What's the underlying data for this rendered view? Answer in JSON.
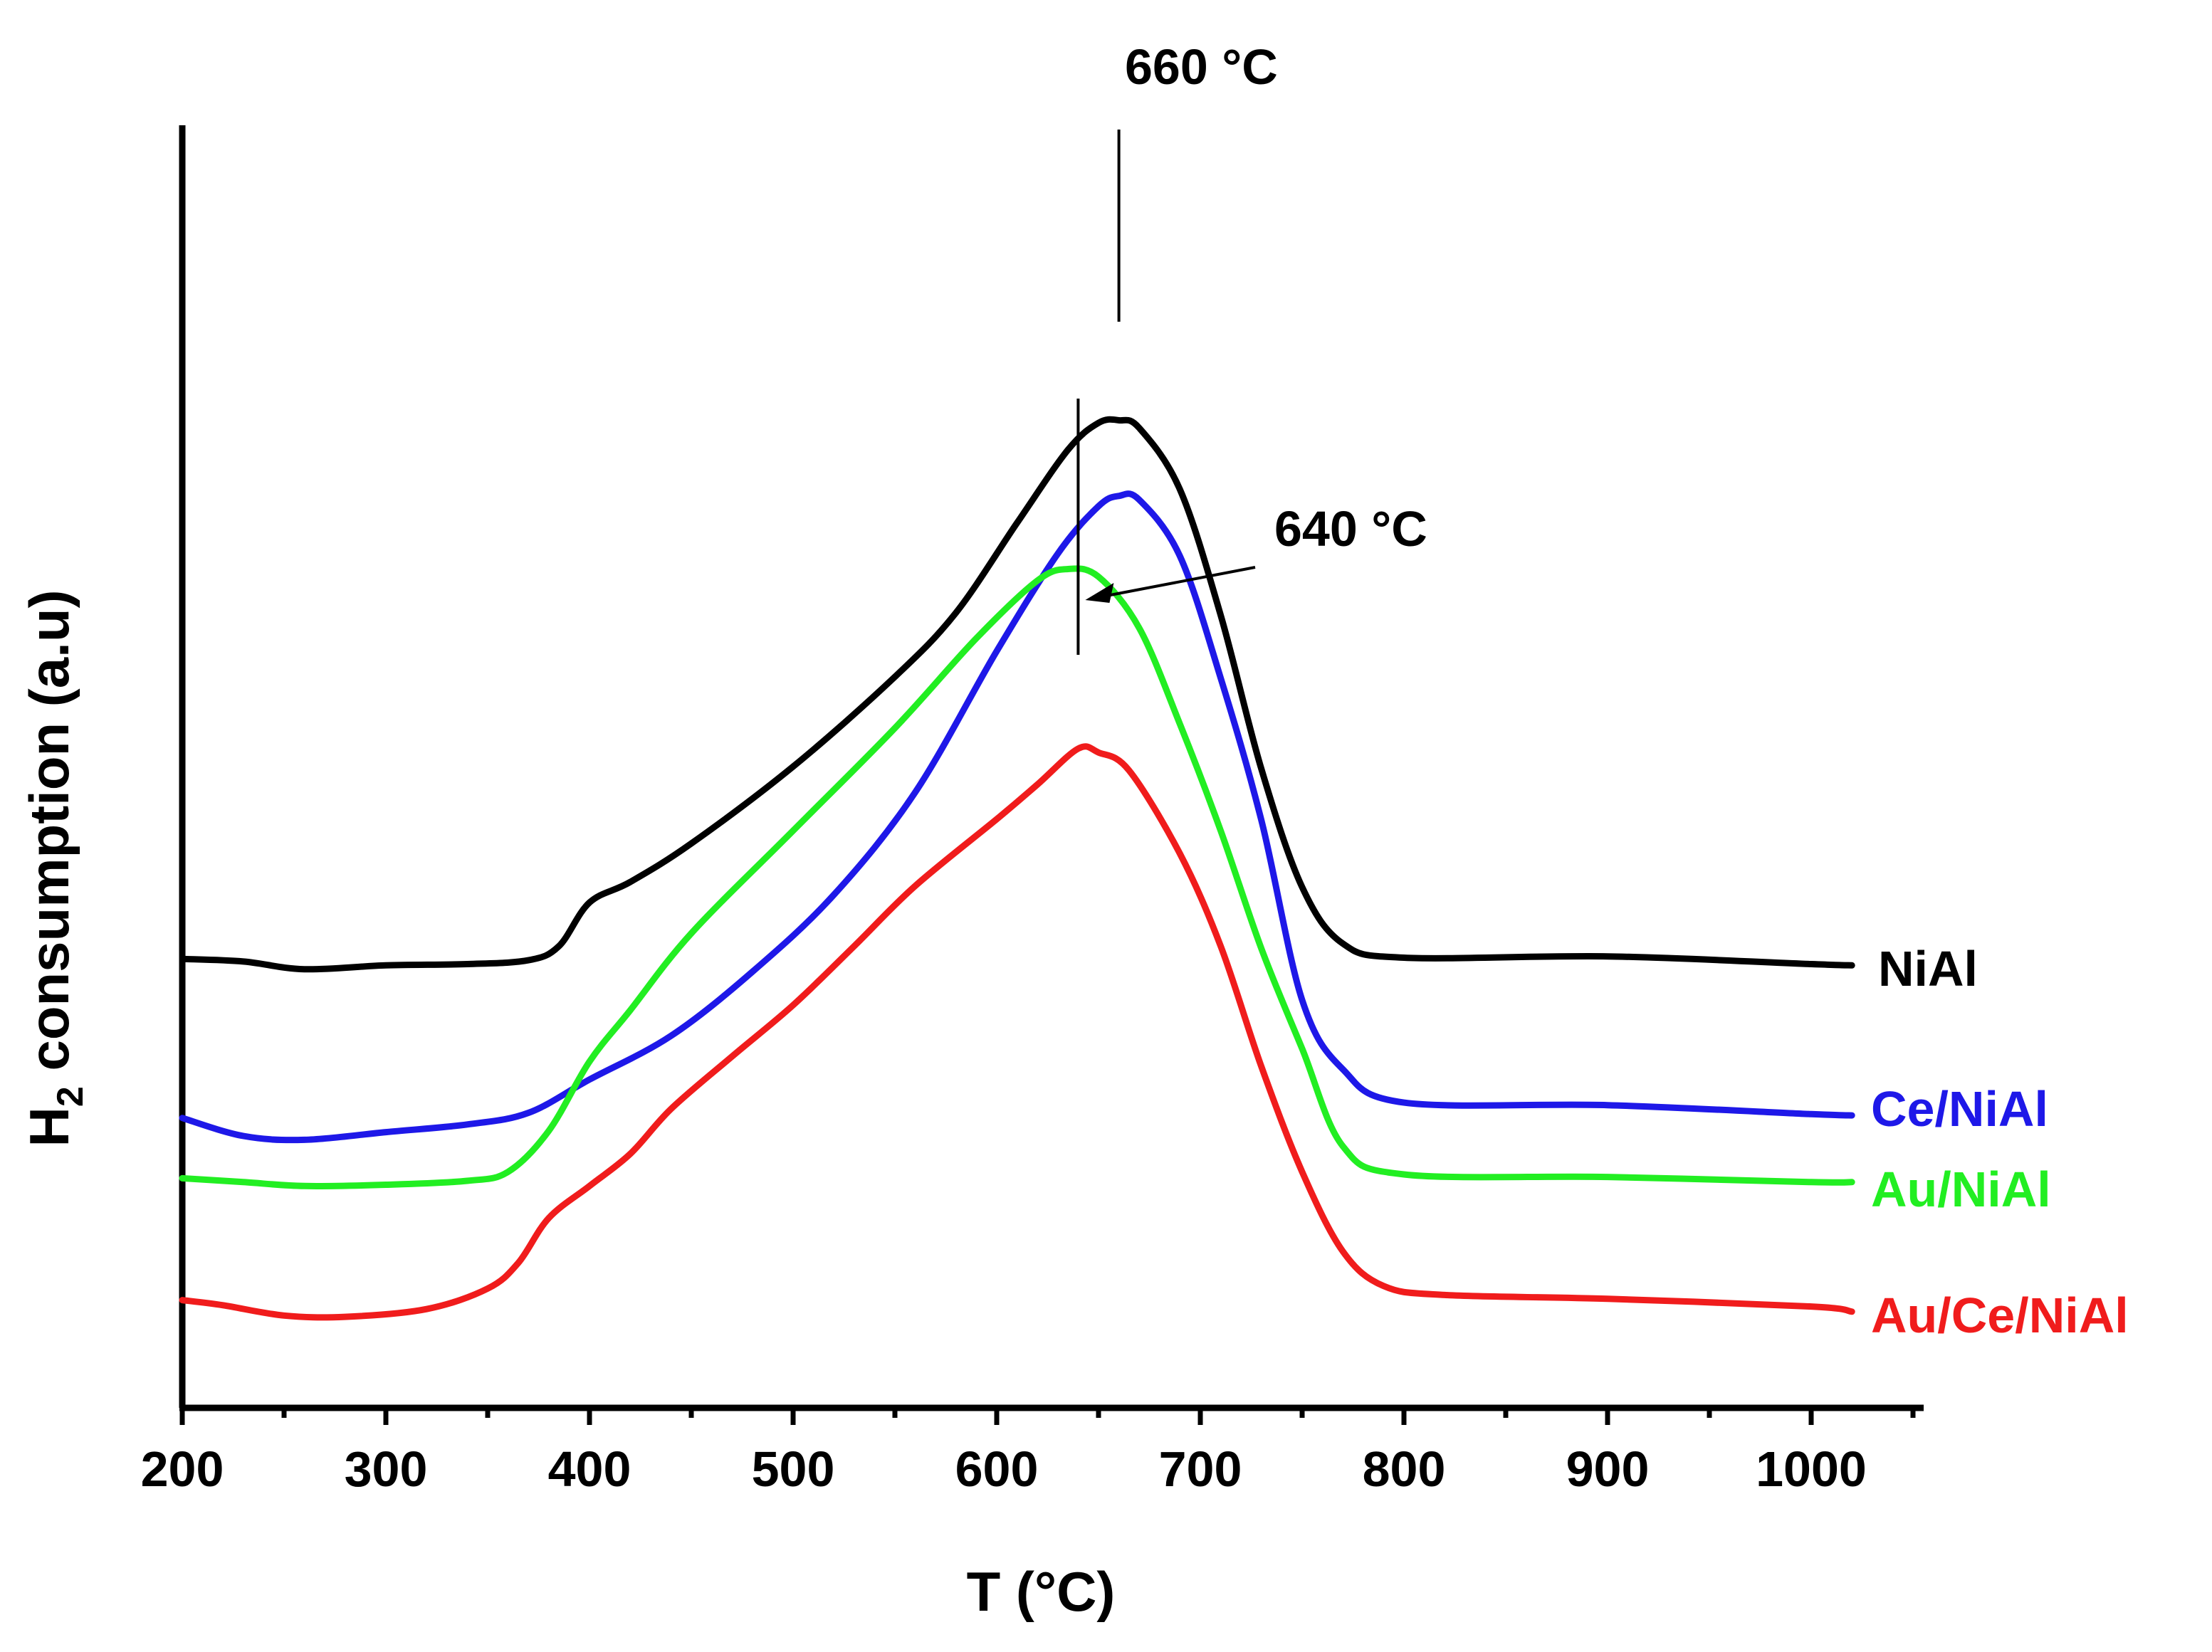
{
  "chart_data": {
    "type": "line",
    "title": "",
    "xlabel": "T (°C)",
    "ylabel_prefix": "H",
    "ylabel_sub": "2",
    "ylabel_rest": " consumption (a.u)",
    "xlim": [
      200,
      1050
    ],
    "ylim": [
      0,
      100
    ],
    "x_ticks": [
      "200",
      "300",
      "400",
      "500",
      "600",
      "700",
      "800",
      "900",
      "1000"
    ],
    "series": [
      {
        "name": "NiAl",
        "color": "#000000",
        "points": [
          [
            200,
            35
          ],
          [
            230,
            34.8
          ],
          [
            260,
            34.2
          ],
          [
            300,
            34.5
          ],
          [
            340,
            34.6
          ],
          [
            370,
            34.9
          ],
          [
            385,
            36
          ],
          [
            400,
            39.4
          ],
          [
            420,
            41
          ],
          [
            450,
            44
          ],
          [
            500,
            50
          ],
          [
            550,
            57
          ],
          [
            580,
            62
          ],
          [
            610,
            69
          ],
          [
            635,
            74.7
          ],
          [
            650,
            76.8
          ],
          [
            660,
            77
          ],
          [
            670,
            76.4
          ],
          [
            690,
            71.6
          ],
          [
            710,
            61.8
          ],
          [
            730,
            49.8
          ],
          [
            750,
            40.6
          ],
          [
            770,
            36.2
          ],
          [
            800,
            35.1
          ],
          [
            900,
            35.2
          ],
          [
            1000,
            34.6
          ],
          [
            1020,
            34.5
          ]
        ]
      },
      {
        "name": "Ce/NiAl",
        "color": "#1e18e8",
        "points": [
          [
            200,
            22.6
          ],
          [
            230,
            21.2
          ],
          [
            260,
            20.9
          ],
          [
            300,
            21.5
          ],
          [
            340,
            22.1
          ],
          [
            370,
            23
          ],
          [
            400,
            25.6
          ],
          [
            440,
            29
          ],
          [
            480,
            34
          ],
          [
            520,
            40
          ],
          [
            560,
            48
          ],
          [
            600,
            59
          ],
          [
            630,
            66.6
          ],
          [
            650,
            70.3
          ],
          [
            660,
            71.1
          ],
          [
            670,
            70.8
          ],
          [
            690,
            66.4
          ],
          [
            710,
            56.9
          ],
          [
            730,
            45.8
          ],
          [
            750,
            31.8
          ],
          [
            770,
            26.4
          ],
          [
            800,
            23.8
          ],
          [
            900,
            23.6
          ],
          [
            1000,
            22.9
          ],
          [
            1020,
            22.8
          ]
        ]
      },
      {
        "name": "Au/NiAl",
        "color": "#22ee22",
        "points": [
          [
            200,
            17.9
          ],
          [
            230,
            17.6
          ],
          [
            260,
            17.3
          ],
          [
            300,
            17.4
          ],
          [
            340,
            17.7
          ],
          [
            360,
            18.4
          ],
          [
            380,
            21.6
          ],
          [
            400,
            27
          ],
          [
            420,
            31
          ],
          [
            450,
            37
          ],
          [
            500,
            45
          ],
          [
            550,
            53
          ],
          [
            590,
            60
          ],
          [
            620,
            64.5
          ],
          [
            635,
            65.4
          ],
          [
            650,
            64.8
          ],
          [
            670,
            60.8
          ],
          [
            690,
            53.3
          ],
          [
            710,
            45
          ],
          [
            730,
            35.8
          ],
          [
            750,
            28
          ],
          [
            770,
            20.4
          ],
          [
            800,
            18.2
          ],
          [
            900,
            18
          ],
          [
            1000,
            17.6
          ],
          [
            1020,
            17.6
          ]
        ]
      },
      {
        "name": "Au/Ce/NiAl",
        "color": "#f01c1c",
        "points": [
          [
            200,
            8.4
          ],
          [
            220,
            8
          ],
          [
            250,
            7.2
          ],
          [
            280,
            7.1
          ],
          [
            320,
            7.7
          ],
          [
            350,
            9.3
          ],
          [
            365,
            11.3
          ],
          [
            380,
            14.8
          ],
          [
            400,
            17.3
          ],
          [
            420,
            19.8
          ],
          [
            440,
            23.3
          ],
          [
            470,
            27.4
          ],
          [
            500,
            31.4
          ],
          [
            530,
            36
          ],
          [
            560,
            40.7
          ],
          [
            600,
            45.9
          ],
          [
            620,
            48.6
          ],
          [
            640,
            51.4
          ],
          [
            650,
            51.1
          ],
          [
            665,
            49.7
          ],
          [
            690,
            43.2
          ],
          [
            710,
            36
          ],
          [
            730,
            26.6
          ],
          [
            750,
            18.4
          ],
          [
            770,
            12.2
          ],
          [
            790,
            9.5
          ],
          [
            820,
            8.8
          ],
          [
            900,
            8.5
          ],
          [
            1000,
            7.9
          ],
          [
            1020,
            7.5
          ]
        ]
      }
    ],
    "annotations": [
      {
        "text": "660 °C",
        "x": 660
      },
      {
        "text": "640 °C",
        "x": 640
      }
    ]
  }
}
